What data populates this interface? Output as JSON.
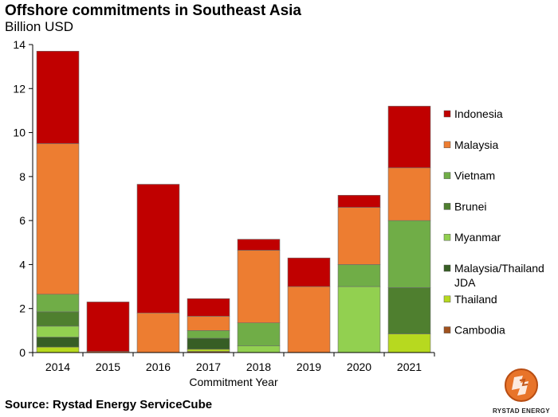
{
  "header": {
    "title": "Offshore commitments in Southeast Asia",
    "subtitle": "Billion USD"
  },
  "footer": {
    "source": "Source:  Rystad Energy ServiceCube",
    "logo_text": "RYSTAD ENERGY"
  },
  "chart_data": {
    "type": "bar",
    "stacked": true,
    "categories": [
      "2014",
      "2015",
      "2016",
      "2017",
      "2018",
      "2019",
      "2020",
      "2021"
    ],
    "xlabel": "Commitment Year",
    "ylabel": "",
    "ylim": [
      0,
      14
    ],
    "yticks": [
      0,
      2,
      4,
      6,
      8,
      10,
      12,
      14
    ],
    "grid": false,
    "legend_position": "right",
    "series": [
      {
        "name": "Cambodia",
        "color": "#a0521e",
        "values": [
          0,
          0,
          0,
          0.05,
          0,
          0,
          0,
          0
        ]
      },
      {
        "name": "Thailand",
        "color": "#b7d91f",
        "values": [
          0.25,
          0,
          0,
          0.1,
          0,
          0,
          0,
          0.85
        ]
      },
      {
        "name": "Malaysia/Thailand JDA",
        "color": "#375e25",
        "values": [
          0.45,
          0,
          0,
          0.5,
          0,
          0,
          0,
          0
        ]
      },
      {
        "name": "Myanmar",
        "color": "#92d050",
        "values": [
          0.5,
          0,
          0,
          0,
          0.3,
          0,
          3.0,
          0
        ]
      },
      {
        "name": "Brunei",
        "color": "#4f7f2f",
        "values": [
          0.65,
          0,
          0,
          0,
          0,
          0,
          0,
          2.1
        ]
      },
      {
        "name": "Vietnam",
        "color": "#70ad47",
        "values": [
          0.8,
          0,
          0,
          0.35,
          1.05,
          0,
          1.0,
          3.05
        ]
      },
      {
        "name": "Malaysia",
        "color": "#ed7d31",
        "values": [
          6.85,
          0.05,
          1.8,
          0.65,
          3.3,
          3.0,
          2.6,
          2.4
        ]
      },
      {
        "name": "Indonesia",
        "color": "#c00000",
        "values": [
          4.2,
          2.25,
          5.85,
          0.8,
          0.5,
          1.3,
          0.55,
          2.8
        ]
      }
    ],
    "legend_order": [
      "Indonesia",
      "Malaysia",
      "Vietnam",
      "Brunei",
      "Myanmar",
      "Malaysia/Thailand JDA",
      "Thailand",
      "Cambodia"
    ]
  }
}
